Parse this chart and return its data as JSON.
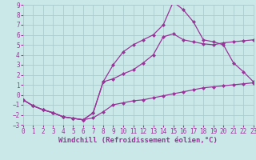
{
  "background_color": "#cbe8e8",
  "grid_color": "#aacccc",
  "line_color": "#993399",
  "xlabel": "Windchill (Refroidissement éolien,°C)",
  "xlim": [
    0,
    23
  ],
  "ylim": [
    -3,
    9
  ],
  "xticks": [
    0,
    1,
    2,
    3,
    4,
    5,
    6,
    7,
    8,
    9,
    10,
    11,
    12,
    13,
    14,
    15,
    16,
    17,
    18,
    19,
    20,
    21,
    22,
    23
  ],
  "yticks": [
    -3,
    -2,
    -1,
    0,
    1,
    2,
    3,
    4,
    5,
    6,
    7,
    8,
    9
  ],
  "curve1_x": [
    0,
    1,
    2,
    3,
    4,
    5,
    6,
    7,
    8,
    9,
    10,
    11,
    12,
    13,
    14,
    15,
    16,
    17,
    18,
    19,
    20,
    21,
    22,
    23
  ],
  "curve1_y": [
    -0.5,
    -1.1,
    -1.5,
    -1.8,
    -2.2,
    -2.35,
    -2.5,
    -2.3,
    -1.7,
    -1.0,
    -0.8,
    -0.6,
    -0.5,
    -0.3,
    -0.1,
    0.1,
    0.3,
    0.5,
    0.7,
    0.8,
    0.9,
    1.0,
    1.1,
    1.2
  ],
  "curve2_x": [
    0,
    1,
    2,
    3,
    4,
    5,
    6,
    7,
    8,
    9,
    10,
    11,
    12,
    13,
    14,
    15,
    16,
    17,
    18,
    19,
    20,
    21,
    22,
    23
  ],
  "curve2_y": [
    -0.5,
    -1.1,
    -1.5,
    -1.8,
    -2.2,
    -2.35,
    -2.5,
    -1.8,
    1.3,
    1.6,
    2.1,
    2.5,
    3.2,
    4.0,
    5.8,
    6.1,
    5.5,
    5.3,
    5.1,
    5.0,
    5.2,
    5.3,
    5.4,
    5.5
  ],
  "curve3_x": [
    0,
    1,
    2,
    3,
    4,
    5,
    6,
    7,
    8,
    9,
    10,
    11,
    12,
    13,
    14,
    15,
    16,
    17,
    18,
    19,
    20,
    21,
    22,
    23
  ],
  "curve3_y": [
    -0.5,
    -1.1,
    -1.5,
    -1.8,
    -2.2,
    -2.35,
    -2.5,
    -1.8,
    1.3,
    3.0,
    4.3,
    5.0,
    5.5,
    6.0,
    7.0,
    9.3,
    8.5,
    7.3,
    5.5,
    5.3,
    5.0,
    3.2,
    2.3,
    1.3
  ],
  "tick_fontsize": 5.5,
  "label_fontsize": 6.5
}
